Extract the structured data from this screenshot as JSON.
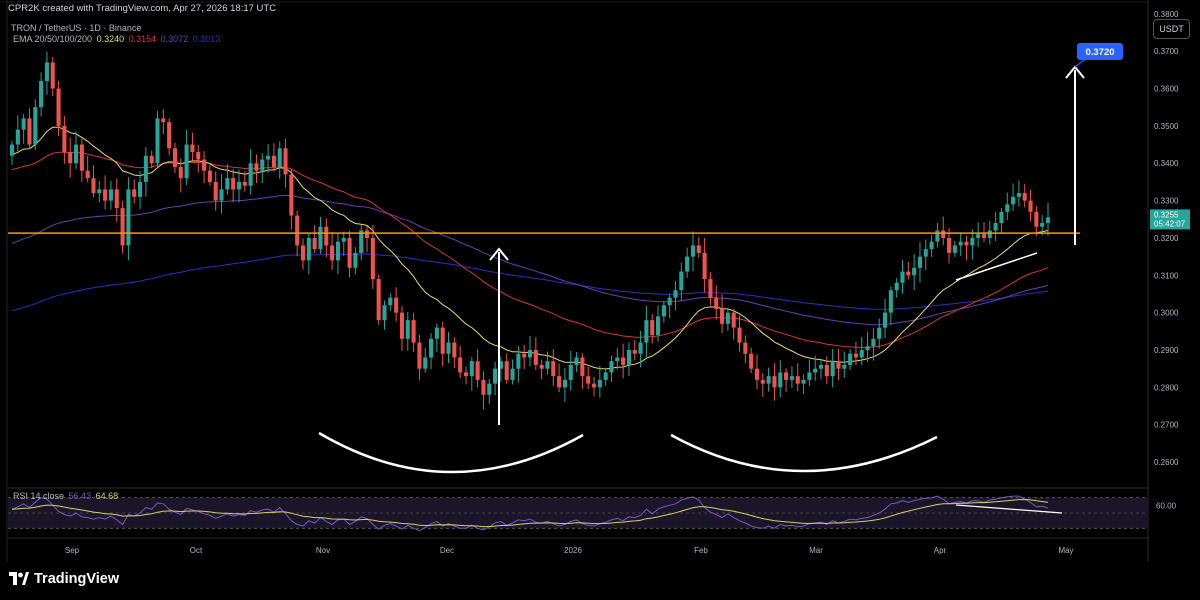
{
  "header": {
    "text": "CPR2K created with TradingView.com, Apr 27, 2026 18:17 UTC"
  },
  "info": {
    "symbol_line": "TRON / TetherUS · 1D · Binance",
    "ema_label": "EMA 20/50/100/200",
    "ema_values": [
      "0.3240",
      "0.3154",
      "0.3072",
      "0.3013"
    ]
  },
  "currency": "USDT",
  "rsi": {
    "label": "RSI 14 close",
    "value1": "56.43",
    "value2": "64.68",
    "level_label": "60.00"
  },
  "footer": {
    "logo_text": "TradingView"
  },
  "colors": {
    "ema20": "#e8dc6a",
    "ema50": "#d1363c",
    "ema100": "#6a3fb0",
    "ema200": "#2b2fbf",
    "up": "#26a69a",
    "down": "#ef5350",
    "resistance": "#ff9800",
    "target": "#2962ff",
    "rsi_line": "#7e57c2",
    "rsi_ma": "#d6d06a"
  },
  "chart_data": {
    "type": "candlestick",
    "title": "TRON / TetherUS · 1D · Binance",
    "y_axis": {
      "ticks": [
        "0.3800",
        "0.3700",
        "0.3600",
        "0.3500",
        "0.3400",
        "0.3300",
        "0.3200",
        "0.3100",
        "0.3000",
        "0.2900",
        "0.2800",
        "0.2700",
        "0.2600"
      ],
      "range": [
        0.2552,
        0.3837
      ]
    },
    "x_axis": {
      "ticks": [
        "Sep",
        "Oct",
        "Nov",
        "Dec",
        "2026",
        "Feb",
        "Mar",
        "Apr",
        "May"
      ]
    },
    "last_price": {
      "value": "0.3255",
      "countdown": "05:42:07"
    },
    "target_label": "0.3720",
    "resistance_level": 0.3213,
    "close_series": [
      0.345,
      0.349,
      0.352,
      0.345,
      0.355,
      0.362,
      0.367,
      0.36,
      0.35,
      0.343,
      0.34,
      0.345,
      0.338,
      0.336,
      0.332,
      0.333,
      0.33,
      0.333,
      0.328,
      0.318,
      0.333,
      0.331,
      0.335,
      0.342,
      0.34,
      0.352,
      0.351,
      0.344,
      0.339,
      0.336,
      0.345,
      0.343,
      0.341,
      0.338,
      0.335,
      0.33,
      0.333,
      0.336,
      0.333,
      0.335,
      0.334,
      0.34,
      0.338,
      0.341,
      0.342,
      0.339,
      0.344,
      0.337,
      0.326,
      0.318,
      0.314,
      0.32,
      0.317,
      0.323,
      0.318,
      0.314,
      0.319,
      0.32,
      0.312,
      0.316,
      0.322,
      0.32,
      0.309,
      0.298,
      0.302,
      0.304,
      0.3,
      0.293,
      0.298,
      0.292,
      0.285,
      0.288,
      0.293,
      0.296,
      0.289,
      0.292,
      0.288,
      0.284,
      0.283,
      0.287,
      0.282,
      0.278,
      0.281,
      0.285,
      0.287,
      0.282,
      0.285,
      0.289,
      0.288,
      0.29,
      0.286,
      0.285,
      0.287,
      0.283,
      0.28,
      0.282,
      0.286,
      0.288,
      0.283,
      0.281,
      0.28,
      0.282,
      0.284,
      0.287,
      0.288,
      0.286,
      0.29,
      0.289,
      0.292,
      0.298,
      0.294,
      0.299,
      0.302,
      0.304,
      0.306,
      0.311,
      0.315,
      0.318,
      0.316,
      0.309,
      0.304,
      0.301,
      0.297,
      0.3,
      0.296,
      0.292,
      0.289,
      0.285,
      0.282,
      0.281,
      0.283,
      0.28,
      0.284,
      0.282,
      0.283,
      0.281,
      0.282,
      0.284,
      0.285,
      0.286,
      0.283,
      0.287,
      0.285,
      0.286,
      0.289,
      0.288,
      0.29,
      0.291,
      0.293,
      0.296,
      0.3,
      0.306,
      0.308,
      0.311,
      0.31,
      0.312,
      0.315,
      0.317,
      0.319,
      0.322,
      0.32,
      0.316,
      0.318,
      0.319,
      0.318,
      0.32,
      0.321,
      0.32,
      0.322,
      0.324,
      0.327,
      0.329,
      0.331,
      0.332,
      0.33,
      0.327,
      0.323,
      0.324,
      0.3255
    ],
    "rsi_series": [
      55,
      58,
      62,
      57,
      64,
      70,
      68,
      60,
      52,
      48,
      46,
      50,
      45,
      44,
      42,
      44,
      42,
      46,
      41,
      35,
      48,
      46,
      50,
      57,
      55,
      63,
      62,
      55,
      51,
      48,
      56,
      54,
      52,
      49,
      47,
      43,
      46,
      49,
      46,
      48,
      47,
      53,
      51,
      54,
      55,
      51,
      57,
      49,
      40,
      35,
      33,
      40,
      37,
      44,
      39,
      35,
      41,
      42,
      35,
      39,
      45,
      43,
      35,
      29,
      34,
      36,
      33,
      29,
      34,
      30,
      27,
      31,
      36,
      39,
      33,
      36,
      33,
      30,
      30,
      34,
      30,
      28,
      32,
      37,
      39,
      34,
      37,
      41,
      40,
      42,
      38,
      37,
      39,
      36,
      33,
      35,
      39,
      41,
      36,
      34,
      33,
      36,
      38,
      41,
      43,
      40,
      45,
      44,
      47,
      55,
      49,
      55,
      58,
      60,
      62,
      67,
      69,
      71,
      67,
      57,
      51,
      48,
      44,
      49,
      44,
      40,
      37,
      33,
      31,
      30,
      33,
      30,
      35,
      33,
      34,
      32,
      33,
      36,
      37,
      38,
      35,
      40,
      37,
      39,
      42,
      41,
      43,
      44,
      47,
      50,
      55,
      62,
      63,
      66,
      64,
      66,
      68,
      69,
      70,
      72,
      68,
      62,
      64,
      65,
      63,
      66,
      66,
      64,
      67,
      68,
      70,
      71,
      72,
      72,
      68,
      64,
      58,
      59,
      56.43
    ],
    "annotations": [
      "resistance line",
      "measured move arrow",
      "target arrow",
      "left base arc",
      "right base arc",
      "rising trendline",
      "RSI divergence line"
    ]
  }
}
